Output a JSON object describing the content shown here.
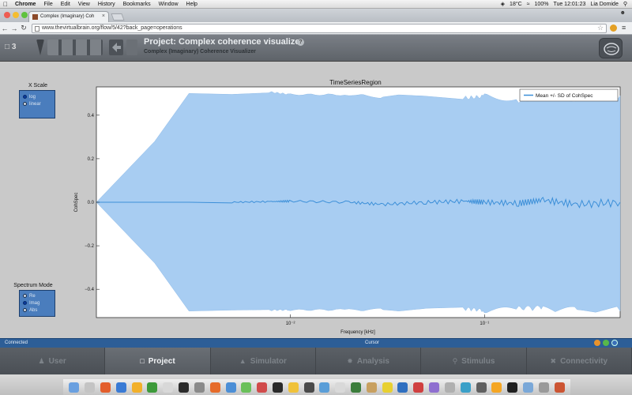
{
  "menubar": {
    "items": [
      "Chrome",
      "File",
      "Edit",
      "View",
      "History",
      "Bookmarks",
      "Window",
      "Help"
    ],
    "temperature": "18°C",
    "battery": "100%",
    "clock": "Tue 12:01:23",
    "user": "Lia Domide"
  },
  "browser": {
    "tab_title": "Complex (Imaginary) Coh",
    "url": "www.thevirtualbrain.org/flow/5/42?back_page=operations"
  },
  "header": {
    "project_count": "3",
    "title": "Project: Complex coherence visualizer",
    "subtitle": "Complex (Imaginary) Coherence Visualizer"
  },
  "controls": {
    "x_scale": {
      "label": "X Scale",
      "options": [
        {
          "label": "log",
          "selected": true
        },
        {
          "label": "linear",
          "selected": false
        }
      ]
    },
    "spectrum_mode": {
      "label": "Spectrum Mode",
      "options": [
        {
          "label": "Re",
          "selected": false
        },
        {
          "label": "Imag",
          "selected": true
        },
        {
          "label": "Abs",
          "selected": false
        }
      ]
    }
  },
  "chart_data": {
    "type": "area",
    "title": "TimeSeriesRegion",
    "xlabel": "Frequency [kHz]",
    "ylabel": "CohSpec",
    "xscale": "log",
    "xlim": [
      0.001,
      0.5
    ],
    "ylim": [
      -0.53,
      0.53
    ],
    "yticks": [
      "0.4",
      "0.2",
      "0.0",
      "−0.2",
      "−0.4"
    ],
    "xticks": [
      "10⁻²",
      "10⁻¹"
    ],
    "legend": {
      "label": "Mean +/- SD of CohSpec",
      "position": "top-right"
    },
    "series": [
      {
        "name": "Mean +/- SD of CohSpec",
        "x": [
          0.001,
          0.002,
          0.003,
          0.005,
          0.008,
          0.01,
          0.02,
          0.03,
          0.05,
          0.08,
          0.1,
          0.15,
          0.2,
          0.3,
          0.5
        ],
        "mean": [
          0.0,
          0.0,
          0.0,
          0.0,
          0.003,
          0.005,
          0.0,
          -0.01,
          0.0,
          0.005,
          0.0,
          -0.005,
          0.01,
          -0.01,
          0.0
        ],
        "upper": [
          0.0,
          0.28,
          0.5,
          0.5,
          0.51,
          0.5,
          0.5,
          0.49,
          0.5,
          0.49,
          0.5,
          0.48,
          0.5,
          0.49,
          0.49
        ],
        "lower": [
          0.0,
          -0.28,
          -0.5,
          -0.5,
          -0.5,
          -0.5,
          -0.5,
          -0.5,
          -0.5,
          -0.5,
          -0.51,
          -0.5,
          -0.5,
          -0.51,
          -0.5
        ]
      }
    ],
    "colors": {
      "band": "#a8cdf2",
      "line": "#3c8fd8"
    }
  },
  "statusbar": {
    "left": "Connected",
    "middle": "Cursor"
  },
  "nav": {
    "tabs": [
      {
        "label": "User",
        "icon": "user-icon",
        "active": false
      },
      {
        "label": "Project",
        "icon": "project-icon",
        "active": true
      },
      {
        "label": "Simulator",
        "icon": "simulator-icon",
        "active": false
      },
      {
        "label": "Analysis",
        "icon": "analysis-icon",
        "active": false
      },
      {
        "label": "Stimulus",
        "icon": "stimulus-icon",
        "active": false
      },
      {
        "label": "Connectivity",
        "icon": "connectivity-icon",
        "active": false
      }
    ]
  }
}
